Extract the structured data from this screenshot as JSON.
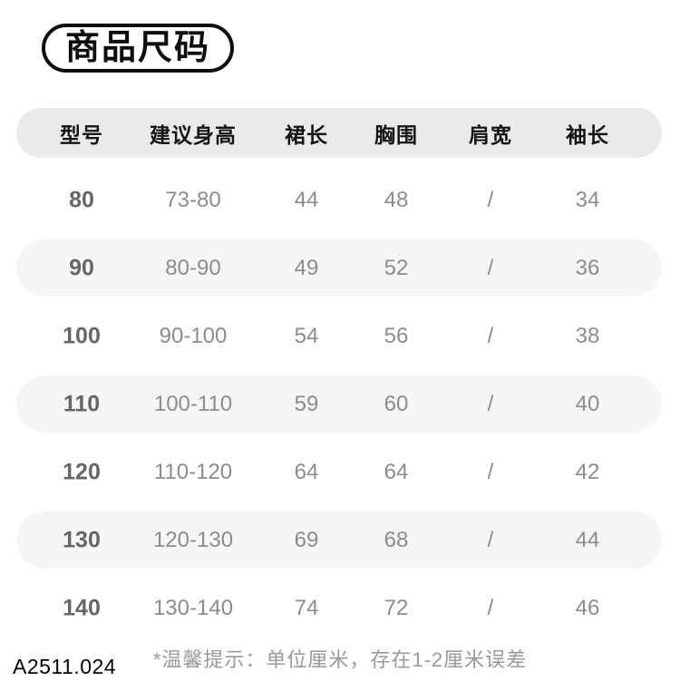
{
  "page": {
    "title_badge": "商品尺码",
    "footer_note": "*温馨提示：单位厘米，存在1-2厘米误差",
    "product_code": "A2511.024"
  },
  "size_table": {
    "columns": [
      "型号",
      "建议身高",
      "裙长",
      "胸围",
      "肩宽",
      "袖长"
    ],
    "rows": [
      [
        "80",
        "73-80",
        "44",
        "48",
        "/",
        "34"
      ],
      [
        "90",
        "80-90",
        "49",
        "52",
        "/",
        "36"
      ],
      [
        "100",
        "90-100",
        "54",
        "56",
        "/",
        "38"
      ],
      [
        "110",
        "100-110",
        "59",
        "60",
        "/",
        "40"
      ],
      [
        "120",
        "110-120",
        "64",
        "64",
        "/",
        "42"
      ],
      [
        "130",
        "120-130",
        "69",
        "68",
        "/",
        "44"
      ],
      [
        "140",
        "130-140",
        "74",
        "72",
        "/",
        "46"
      ]
    ]
  },
  "colors": {
    "header_row_bg": "#eaeaea",
    "alt_row_bg": "#f5f5f5",
    "title_color": "#0d0d0d",
    "header_text": "#141414",
    "cell_text": "#8c8c8c",
    "model_col_text": "#666666",
    "note_text": "#9a9a9a"
  }
}
